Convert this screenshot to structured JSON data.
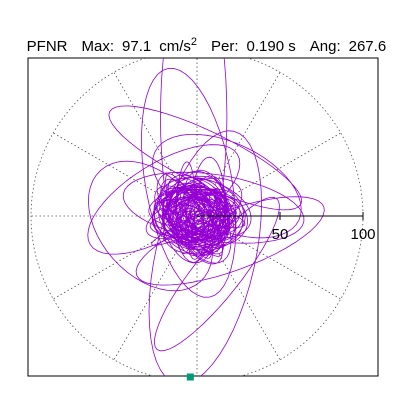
{
  "header": {
    "component": "PFNR",
    "max_label": "Max:",
    "max_value": "97.1",
    "max_unit": "cm/s",
    "max_unit_exp": "2",
    "per_label": "Per:",
    "per_value": "0.190 s",
    "ang_label": "Ang:",
    "ang_value": "267.6"
  },
  "chart_data": {
    "type": "polar-orbit",
    "radial_ticks": [
      "50",
      "100"
    ],
    "radial_tick_values": [
      50,
      100
    ],
    "radial_max": 100,
    "grid": "dotted",
    "spoke_angles_deg": [
      0,
      30,
      60,
      90,
      120,
      150,
      180,
      210,
      240,
      270,
      300,
      330
    ],
    "peak": {
      "magnitude": 97.1,
      "angle_deg": 267.6
    },
    "colors": {
      "trace": "#9400d3",
      "marker": "#009b77",
      "grid": "#555555",
      "axis": "#000000"
    }
  }
}
